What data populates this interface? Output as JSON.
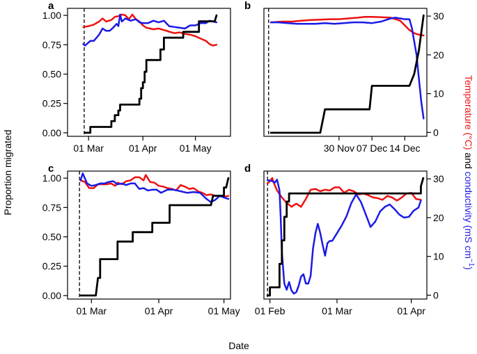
{
  "figure": {
    "ylabel_left": "Proportion migrated",
    "xlabel": "Date",
    "ylabel_right_parts": [
      "Temperature (°C)",
      " and ",
      "conductivity (mS cm",
      "−1",
      ")"
    ],
    "colors": {
      "proportion": "#000000",
      "temperature": "#ee1111",
      "conductivity": "#1a1ae6"
    }
  },
  "chart_data": [
    {
      "panel": "a",
      "type": "line",
      "x_unit": "day-of-year",
      "xlim": [
        48,
        141
      ],
      "x_ticks": [
        {
          "x": 60,
          "label": "01 Mar"
        },
        {
          "x": 91,
          "label": "01 Apr"
        },
        {
          "x": 121,
          "label": "01 May"
        }
      ],
      "ylim_left": [
        -0.03,
        1.06
      ],
      "y_ticks_left": [
        0,
        0.25,
        0.5,
        0.75,
        1.0
      ],
      "y_tick_labels_left": [
        "0.00",
        "0.25",
        "0.50",
        "0.75",
        "1.00"
      ],
      "ylim_right": [
        -1,
        32
      ],
      "y_ticks_right": [],
      "y_tick_labels_right": [],
      "release_line_x": 57.5,
      "series": [
        {
          "name": "Proportion migrated",
          "axis": "left",
          "color": "#000000",
          "x": [
            58,
            61,
            61,
            73,
            73,
            75,
            75,
            77,
            77,
            78,
            78,
            80,
            80,
            89,
            89,
            90,
            90,
            91,
            91,
            92,
            92,
            93,
            93,
            101,
            101,
            103,
            103,
            114,
            114,
            123,
            123,
            132,
            132,
            133
          ],
          "y": [
            0,
            0,
            0.05,
            0.05,
            0.1,
            0.1,
            0.15,
            0.15,
            0.19,
            0.19,
            0.24,
            0.24,
            0.24,
            0.24,
            0.29,
            0.29,
            0.38,
            0.38,
            0.43,
            0.43,
            0.52,
            0.52,
            0.62,
            0.62,
            0.71,
            0.71,
            0.81,
            0.81,
            0.86,
            0.86,
            0.95,
            0.95,
            0.95,
            1.0
          ]
        },
        {
          "name": "Temperature",
          "axis": "right",
          "color": "#ee1111",
          "x": [
            57,
            60,
            63,
            66,
            68,
            70,
            73,
            75,
            77,
            79,
            81,
            83,
            85,
            87,
            89,
            91,
            93,
            95,
            97,
            100,
            103,
            106,
            109,
            112,
            115,
            118,
            121,
            124,
            127,
            129,
            131,
            133
          ],
          "y": [
            27.2,
            27.4,
            27.8,
            28.6,
            29.4,
            28.6,
            29.0,
            29.8,
            30.0,
            30.4,
            30.2,
            29.2,
            30.4,
            29.2,
            28.6,
            27.6,
            27.0,
            26.8,
            26.6,
            26.8,
            26.4,
            26.0,
            25.6,
            25.8,
            25.4,
            25.2,
            24.8,
            24.2,
            23.6,
            22.8,
            22.4,
            22.6
          ]
        },
        {
          "name": "Conductivity",
          "axis": "right",
          "color": "#1a1ae6",
          "x": [
            57,
            58,
            61,
            63,
            66,
            68,
            70,
            72,
            74,
            76,
            77,
            78,
            79,
            81,
            84,
            87,
            89,
            91,
            94,
            97,
            100,
            103,
            106,
            109,
            112,
            115,
            118,
            121,
            124,
            127,
            129,
            131,
            133
          ],
          "y": [
            22.8,
            22.4,
            23.6,
            23.6,
            25.2,
            26.8,
            26.2,
            26.2,
            27.0,
            28.0,
            27.4,
            30.4,
            28.6,
            29.4,
            28.8,
            29.2,
            28.4,
            28.2,
            28.2,
            28.8,
            28.4,
            28.8,
            27.4,
            27.2,
            27.0,
            26.8,
            27.6,
            27.6,
            28.2,
            28.2,
            28.8,
            28.6,
            28.4
          ]
        }
      ]
    },
    {
      "panel": "b",
      "type": "line",
      "x_unit": "day-of-year",
      "xlim": [
        318,
        352.7
      ],
      "x_ticks": [
        {
          "x": 334,
          "label": "30 Nov"
        },
        {
          "x": 341,
          "label": "07 Dec"
        },
        {
          "x": 348,
          "label": "14 Dec"
        }
      ],
      "ylim_left": [
        -0.03,
        1.06
      ],
      "y_ticks_left": [],
      "y_tick_labels_left": [],
      "ylim_right": [
        -1,
        32
      ],
      "y_ticks_right": [
        0,
        10,
        20,
        30
      ],
      "y_tick_labels_right": [
        "0",
        "10",
        "20",
        "30"
      ],
      "release_line_x": 319,
      "series": [
        {
          "name": "Proportion migrated",
          "axis": "left",
          "color": "#000000",
          "x": [
            319.5,
            323.5,
            324,
            330,
            331,
            340.5,
            341,
            344,
            348,
            349,
            350,
            351,
            352
          ],
          "y": [
            0,
            0,
            0,
            0,
            0.2,
            0.2,
            0.4,
            0.4,
            0.4,
            0.4,
            0.5,
            0.7,
            1.0
          ]
        },
        {
          "name": "Temperature",
          "axis": "right",
          "color": "#ee1111",
          "x": [
            319.5,
            322,
            324,
            326,
            328,
            330,
            332,
            334,
            336,
            338,
            339.5,
            341,
            343,
            345,
            346,
            347,
            348,
            349,
            350,
            351,
            352
          ],
          "y": [
            28.4,
            28.6,
            28.6,
            28.8,
            29.0,
            29.1,
            29.2,
            29.2,
            29.4,
            29.6,
            29.8,
            29.8,
            29.7,
            29.6,
            29.2,
            28.8,
            27.6,
            26.4,
            25.6,
            25.2,
            25.0
          ]
        },
        {
          "name": "Conductivity",
          "axis": "right",
          "color": "#1a1ae6",
          "x": [
            319.5,
            321,
            323,
            325,
            327,
            329,
            331,
            333,
            335,
            337,
            339,
            341,
            343,
            344,
            345,
            346,
            347,
            348,
            349,
            349.5,
            350.5,
            351,
            351.5,
            352
          ],
          "y": [
            28.4,
            28.4,
            28.2,
            28.0,
            28.0,
            28.0,
            28.2,
            28.0,
            28.2,
            28.4,
            28.4,
            28.2,
            28.6,
            29.0,
            29.4,
            29.6,
            29.4,
            29.2,
            29.2,
            27.0,
            20.0,
            14.0,
            8.0,
            3.6
          ]
        }
      ]
    },
    {
      "panel": "c",
      "type": "line",
      "x_unit": "day-of-year",
      "xlim": [
        49,
        124
      ],
      "x_ticks": [
        {
          "x": 60,
          "label": "01 Mar"
        },
        {
          "x": 91,
          "label": "01 Apr"
        },
        {
          "x": 121,
          "label": "01 May"
        }
      ],
      "ylim_left": [
        -0.03,
        1.06
      ],
      "y_ticks_left": [
        0,
        0.25,
        0.5,
        0.75,
        1.0
      ],
      "y_tick_labels_left": [
        "0.00",
        "0.25",
        "0.50",
        "0.75",
        "1.00"
      ],
      "ylim_right": [
        -1,
        32
      ],
      "y_ticks_right": [],
      "y_tick_labels_right": [],
      "release_line_x": 54.5,
      "series": [
        {
          "name": "Proportion migrated",
          "axis": "left",
          "color": "#000000",
          "x": [
            55,
            62,
            63,
            64,
            64,
            71,
            72,
            72,
            78,
            79,
            79,
            87,
            88,
            88,
            95,
            96,
            96,
            115,
            116,
            121,
            121,
            122,
            123
          ],
          "y": [
            0,
            0,
            0.15,
            0.15,
            0.31,
            0.31,
            0.31,
            0.46,
            0.46,
            0.46,
            0.54,
            0.54,
            0.54,
            0.62,
            0.62,
            0.62,
            0.77,
            0.77,
            0.85,
            0.85,
            0.92,
            0.92,
            1.0
          ]
        },
        {
          "name": "Temperature",
          "axis": "right",
          "color": "#ee1111",
          "x": [
            55,
            57,
            59,
            61,
            63,
            65,
            67,
            69,
            71,
            72,
            74,
            76,
            78,
            80,
            82,
            84,
            85,
            87,
            89,
            91,
            93,
            95,
            97,
            99,
            101,
            103,
            105,
            107,
            109,
            111,
            113,
            115,
            117,
            119,
            121,
            123
          ],
          "y": [
            29.6,
            29.2,
            27.6,
            27.6,
            28.6,
            28.6,
            28.6,
            28.8,
            28.2,
            29.0,
            28.6,
            29.4,
            29.6,
            30.4,
            30.4,
            29.6,
            31.0,
            29.2,
            29.0,
            28.2,
            28.0,
            27.6,
            27.4,
            27.0,
            28.4,
            28.0,
            27.4,
            27.6,
            26.8,
            26.4,
            25.8,
            26.0,
            25.6,
            25.6,
            25.4,
            25.6
          ]
        },
        {
          "name": "Conductivity",
          "axis": "right",
          "color": "#1a1ae6",
          "x": [
            55,
            56,
            58,
            60,
            62,
            64,
            66,
            68,
            70,
            72,
            74,
            76,
            78,
            80,
            82,
            84,
            86,
            88,
            90,
            92,
            95,
            98,
            101,
            104,
            107,
            110,
            113,
            115,
            117,
            119,
            121,
            123
          ],
          "y": [
            29.6,
            31.4,
            28.8,
            28.2,
            28.4,
            28.8,
            28.8,
            29.2,
            29.4,
            28.6,
            28.8,
            28.4,
            28.8,
            28.8,
            27.4,
            27.6,
            27.0,
            27.2,
            27.2,
            26.4,
            27.2,
            27.2,
            26.8,
            26.4,
            26.6,
            26.4,
            24.8,
            24.0,
            24.6,
            25.6,
            25.2,
            24.8
          ]
        }
      ]
    },
    {
      "panel": "d",
      "type": "line",
      "x_unit": "day-of-year",
      "xlim": [
        29.5,
        97.5
      ],
      "x_ticks": [
        {
          "x": 32,
          "label": "01 Feb"
        },
        {
          "x": 60,
          "label": "01 Mar"
        },
        {
          "x": 91,
          "label": "01 Apr"
        }
      ],
      "ylim_left": [
        -0.03,
        1.06
      ],
      "y_ticks_left": [],
      "y_tick_labels_left": [],
      "ylim_right": [
        -1,
        32
      ],
      "y_ticks_right": [
        0,
        10,
        20,
        30
      ],
      "y_tick_labels_right": [
        "0",
        "10",
        "20",
        "30"
      ],
      "release_line_x": 31,
      "series": [
        {
          "name": "Proportion migrated",
          "axis": "left",
          "color": "#000000",
          "x": [
            31,
            32,
            32,
            36,
            36,
            37,
            37,
            38,
            38,
            39,
            39,
            40,
            40,
            95,
            95,
            96
          ],
          "y": [
            0,
            0,
            0.07,
            0.07,
            0.27,
            0.27,
            0.47,
            0.47,
            0.67,
            0.67,
            0.8,
            0.8,
            0.87,
            0.87,
            0.93,
            1.0
          ]
        },
        {
          "name": "Temperature",
          "axis": "right",
          "color": "#ee1111",
          "x": [
            31,
            32,
            33,
            34,
            35,
            37,
            39,
            41,
            43,
            45,
            47,
            49,
            51,
            53,
            55,
            57,
            59,
            61,
            63,
            65,
            67,
            69,
            71,
            73,
            75,
            77,
            79,
            81,
            83,
            85,
            87,
            89,
            91,
            93,
            95
          ],
          "y": [
            28.8,
            29.4,
            30.2,
            28.4,
            27.0,
            25.2,
            23.8,
            22.8,
            23.6,
            22.8,
            24.8,
            27.2,
            27.4,
            26.8,
            27.2,
            27.0,
            27.8,
            27.8,
            26.4,
            27.2,
            26.8,
            26.0,
            26.2,
            25.8,
            25.2,
            25.0,
            24.6,
            25.6,
            25.2,
            24.4,
            25.2,
            26.2,
            26.4,
            24.8,
            24.6
          ]
        },
        {
          "name": "Conductivity",
          "axis": "right",
          "color": "#1a1ae6",
          "x": [
            31,
            32,
            33,
            34,
            35,
            36,
            36.5,
            37,
            38,
            39,
            40,
            41,
            42,
            43,
            44,
            45,
            46,
            47,
            48,
            49,
            50,
            51,
            52,
            53,
            54,
            55,
            56,
            57,
            58,
            60,
            62,
            64,
            66,
            68,
            70,
            72,
            74,
            76,
            78,
            80,
            82,
            84,
            86,
            88,
            90,
            92,
            94,
            95
          ],
          "y": [
            29.6,
            29.6,
            29.4,
            29.0,
            29.8,
            27.0,
            20.0,
            11.0,
            3.0,
            1.4,
            3.4,
            1.2,
            0.4,
            0.8,
            2.4,
            4.8,
            5.4,
            3.0,
            3.0,
            5.0,
            12.0,
            16.0,
            18.4,
            16.0,
            13.0,
            10.2,
            13.4,
            14.0,
            14.0,
            16.0,
            18.0,
            20.4,
            23.8,
            26.0,
            24.0,
            20.8,
            17.6,
            19.0,
            21.6,
            22.8,
            23.4,
            22.2,
            20.8,
            20.0,
            20.2,
            21.8,
            22.6,
            24.4
          ]
        }
      ]
    }
  ]
}
